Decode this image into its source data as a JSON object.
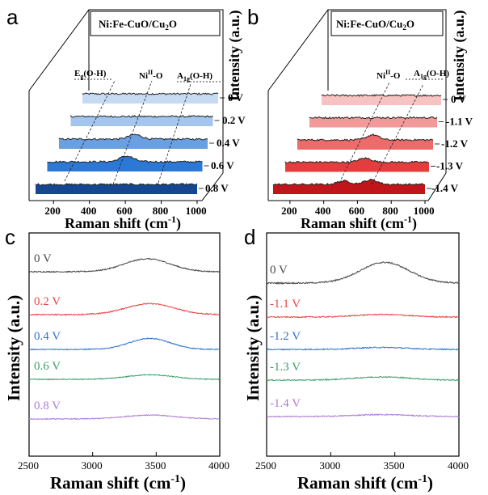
{
  "chart_data": [
    {
      "panel": "a",
      "type": "line",
      "box_title": "Ni:Fe-CuO/Cu2O",
      "xlabel": "Raman shift (cm-1)",
      "zlabel": "Intensity (a.u.)",
      "x_ticks": [
        "200",
        "400",
        "600",
        "800",
        "1000"
      ],
      "xlim": [
        100,
        1000
      ],
      "series": [
        {
          "name": "0 V",
          "color": "#c6dbf3",
          "peaks": []
        },
        {
          "name": "0.2 V",
          "color": "#a4c6ee",
          "peaks": []
        },
        {
          "name": "0.4 V",
          "color": "#6a9fe0",
          "peaks": [
            {
              "x": 560,
              "h": 0.8
            }
          ]
        },
        {
          "name": "0.6 V",
          "color": "#2b78d6",
          "peaks": [
            {
              "x": 560,
              "h": 1.0
            }
          ]
        },
        {
          "name": "0.8 V",
          "color": "#15468f",
          "peaks": []
        }
      ],
      "peak_labels": [
        {
          "base": "E",
          "sub": "g",
          "tail": "(O-H)"
        },
        {
          "base": "Ni",
          "sup": "II",
          "tail": "-O"
        },
        {
          "base": "A",
          "sub": "1g",
          "tail": "(O-H)"
        }
      ]
    },
    {
      "panel": "b",
      "type": "line",
      "box_title": "Ni:Fe-CuO/Cu2O",
      "xlabel": "Raman shift (cm-1)",
      "zlabel": "Intensity (a.u.)",
      "x_ticks": [
        "200",
        "400",
        "600",
        "800",
        "1000"
      ],
      "xlim": [
        100,
        1000
      ],
      "series": [
        {
          "name": "0 V",
          "color": "#f7c2c2",
          "peaks": []
        },
        {
          "name": "-1.1 V",
          "color": "#f29a9a",
          "peaks": []
        },
        {
          "name": "-1.2 V",
          "color": "#ec6c6c",
          "peaks": [
            {
              "x": 600,
              "h": 0.9
            }
          ]
        },
        {
          "name": "-1.3 V",
          "color": "#e43d3d",
          "peaks": [
            {
              "x": 600,
              "h": 0.7
            }
          ]
        },
        {
          "name": "-1.4 V",
          "color": "#c0151a",
          "peaks": [
            {
              "x": 520,
              "h": 0.6
            },
            {
              "x": 680,
              "h": 0.8
            }
          ]
        }
      ],
      "peak_labels": [
        {
          "base": "Ni",
          "sup": "II",
          "tail": "-O"
        },
        {
          "base": "A",
          "sub": "1g",
          "tail": "(O-H)"
        }
      ]
    },
    {
      "panel": "c",
      "type": "line",
      "xlabel": "Raman shift (cm-1)",
      "ylabel": "Intensity (a.u.)",
      "xlim": [
        2500,
        4000
      ],
      "x_ticks": [
        2500,
        3000,
        3500,
        4000
      ],
      "series": [
        {
          "name": "0 V",
          "color": "#4a4a4a",
          "peak_x": 3430,
          "peak_h": 1.0,
          "width": 180,
          "noise": 0.12
        },
        {
          "name": "0.2 V",
          "color": "#e84545",
          "peak_x": 3450,
          "peak_h": 0.85,
          "width": 190,
          "noise": 0.12
        },
        {
          "name": "0.4 V",
          "color": "#2f72d0",
          "peak_x": 3450,
          "peak_h": 0.85,
          "width": 160,
          "noise": 0.1
        },
        {
          "name": "0.6 V",
          "color": "#3aa06a",
          "peak_x": 3450,
          "peak_h": 0.35,
          "width": 180,
          "noise": 0.1
        },
        {
          "name": "0.8 V",
          "color": "#b07ad8",
          "peak_x": 3450,
          "peak_h": 0.3,
          "width": 200,
          "noise": 0.1
        }
      ]
    },
    {
      "panel": "d",
      "type": "line",
      "xlabel": "Raman shift (cm-1)",
      "ylabel": "Intensity (a.u.)",
      "xlim": [
        2500,
        4000
      ],
      "x_ticks": [
        2500,
        3000,
        3500,
        4000
      ],
      "series": [
        {
          "name": "0 V",
          "color": "#4a4a4a",
          "peak_x": 3420,
          "peak_h": 1.6,
          "width": 190,
          "noise": 0.15
        },
        {
          "name": "-1.1 V",
          "color": "#e84545",
          "peak_x": 3400,
          "peak_h": 0.2,
          "width": 200,
          "noise": 0.12
        },
        {
          "name": "-1.2 V",
          "color": "#2f72d0",
          "peak_x": 3400,
          "peak_h": 0.15,
          "width": 200,
          "noise": 0.12
        },
        {
          "name": "-1.3 V",
          "color": "#3aa06a",
          "peak_x": 3400,
          "peak_h": 0.25,
          "width": 220,
          "noise": 0.12
        },
        {
          "name": "-1.4 V",
          "color": "#b07ad8",
          "peak_x": 3400,
          "peak_h": 0.15,
          "width": 220,
          "noise": 0.12
        }
      ]
    }
  ]
}
